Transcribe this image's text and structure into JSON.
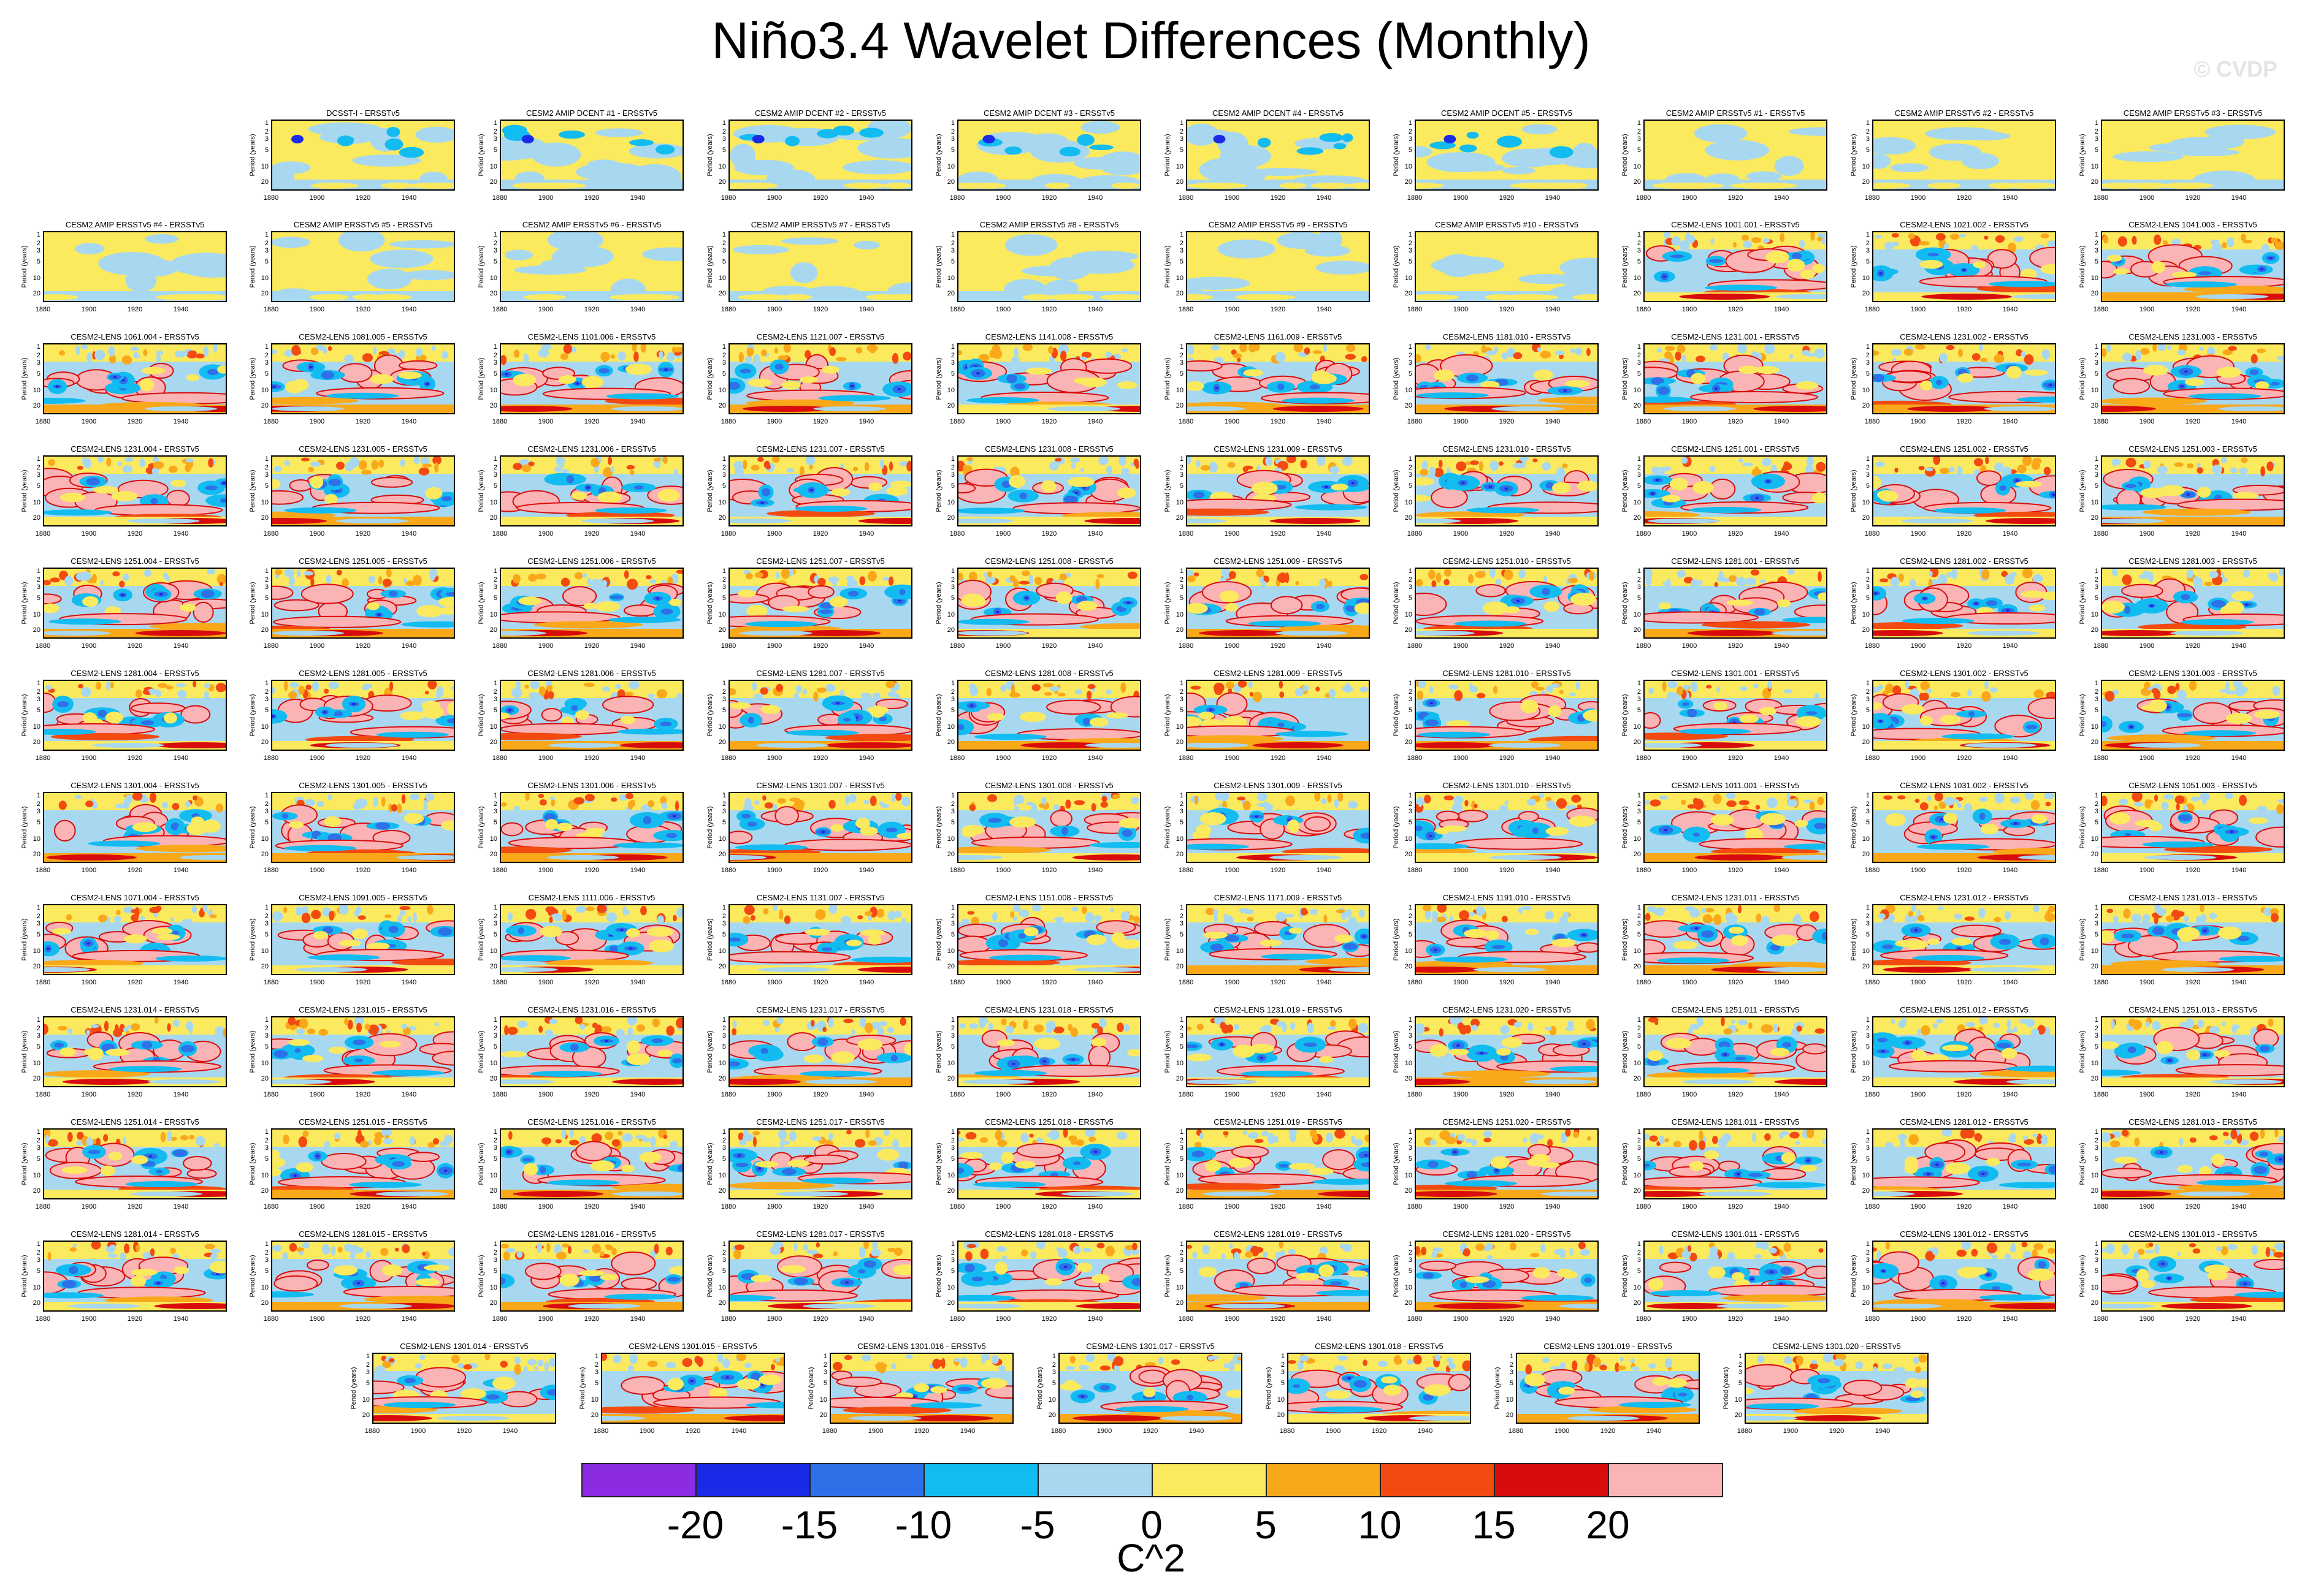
{
  "title": "Niño3.4 Wavelet Differences (Monthly)",
  "watermark": "© CVDP",
  "chart_data": {
    "type": "heatmap",
    "description_units": "C^2",
    "ylabel": "Period (years)",
    "y_ticks": [
      "1",
      "2",
      "3",
      "5",
      "10",
      "20"
    ],
    "x_ticks": [
      "1880",
      "1900",
      "1920",
      "1940"
    ],
    "colorbar": {
      "label": "C^2",
      "levels": [
        -20,
        -15,
        -10,
        -5,
        0,
        5,
        10,
        15,
        20
      ],
      "tick_labels": [
        "-20",
        "-15",
        "-10",
        "-5",
        "0",
        "5",
        "10",
        "15",
        "20"
      ],
      "colors": [
        "#8b2be2",
        "#1a2be8",
        "#2e70e8",
        "#12bcf1",
        "#a8d8f0",
        "#fbe95e",
        "#f9a81a",
        "#f24a10",
        "#d80c0c",
        "#fbb4b6"
      ]
    },
    "panels": [
      "DCSST-I - ERSSTv5",
      "CESM2 AMIP DCENT #1 - ERSSTv5",
      "CESM2 AMIP DCENT #2 - ERSSTv5",
      "CESM2 AMIP DCENT #3 - ERSSTv5",
      "CESM2 AMIP DCENT #4 - ERSSTv5",
      "CESM2 AMIP DCENT #5 - ERSSTv5",
      "CESM2 AMIP ERSSTv5 #1 - ERSSTv5",
      "CESM2 AMIP ERSSTv5 #2 - ERSSTv5",
      "CESM2 AMIP ERSSTv5 #3 - ERSSTv5",
      "CESM2 AMIP ERSSTv5 #4 - ERSSTv5",
      "CESM2 AMIP ERSSTv5 #5 - ERSSTv5",
      "CESM2 AMIP ERSSTv5 #6 - ERSSTv5",
      "CESM2 AMIP ERSSTv5 #7 - ERSSTv5",
      "CESM2 AMIP ERSSTv5 #8 - ERSSTv5",
      "CESM2 AMIP ERSSTv5 #9 - ERSSTv5",
      "CESM2 AMIP ERSSTv5 #10 - ERSSTv5",
      "CESM2-LENS 1001.001 - ERSSTv5",
      "CESM2-LENS 1021.002 - ERSSTv5",
      "CESM2-LENS 1041.003 - ERSSTv5",
      "CESM2-LENS 1061.004 - ERSSTv5",
      "CESM2-LENS 1081.005 - ERSSTv5",
      "CESM2-LENS 1101.006 - ERSSTv5",
      "CESM2-LENS 1121.007 - ERSSTv5",
      "CESM2-LENS 1141.008 - ERSSTv5",
      "CESM2-LENS 1161.009 - ERSSTv5",
      "CESM2-LENS 1181.010 - ERSSTv5",
      "CESM2-LENS 1231.001 - ERSSTv5",
      "CESM2-LENS 1231.002 - ERSSTv5",
      "CESM2-LENS 1231.003 - ERSSTv5",
      "CESM2-LENS 1231.004 - ERSSTv5",
      "CESM2-LENS 1231.005 - ERSSTv5",
      "CESM2-LENS 1231.006 - ERSSTv5",
      "CESM2-LENS 1231.007 - ERSSTv5",
      "CESM2-LENS 1231.008 - ERSSTv5",
      "CESM2-LENS 1231.009 - ERSSTv5",
      "CESM2-LENS 1231.010 - ERSSTv5",
      "CESM2-LENS 1251.001 - ERSSTv5",
      "CESM2-LENS 1251.002 - ERSSTv5",
      "CESM2-LENS 1251.003 - ERSSTv5",
      "CESM2-LENS 1251.004 - ERSSTv5",
      "CESM2-LENS 1251.005 - ERSSTv5",
      "CESM2-LENS 1251.006 - ERSSTv5",
      "CESM2-LENS 1251.007 - ERSSTv5",
      "CESM2-LENS 1251.008 - ERSSTv5",
      "CESM2-LENS 1251.009 - ERSSTv5",
      "CESM2-LENS 1251.010 - ERSSTv5",
      "CESM2-LENS 1281.001 - ERSSTv5",
      "CESM2-LENS 1281.002 - ERSSTv5",
      "CESM2-LENS 1281.003 - ERSSTv5",
      "CESM2-LENS 1281.004 - ERSSTv5",
      "CESM2-LENS 1281.005 - ERSSTv5",
      "CESM2-LENS 1281.006 - ERSSTv5",
      "CESM2-LENS 1281.007 - ERSSTv5",
      "CESM2-LENS 1281.008 - ERSSTv5",
      "CESM2-LENS 1281.009 - ERSSTv5",
      "CESM2-LENS 1281.010 - ERSSTv5",
      "CESM2-LENS 1301.001 - ERSSTv5",
      "CESM2-LENS 1301.002 - ERSSTv5",
      "CESM2-LENS 1301.003 - ERSSTv5",
      "CESM2-LENS 1301.004 - ERSSTv5",
      "CESM2-LENS 1301.005 - ERSSTv5",
      "CESM2-LENS 1301.006 - ERSSTv5",
      "CESM2-LENS 1301.007 - ERSSTv5",
      "CESM2-LENS 1301.008 - ERSSTv5",
      "CESM2-LENS 1301.009 - ERSSTv5",
      "CESM2-LENS 1301.010 - ERSSTv5",
      "CESM2-LENS 1011.001 - ERSSTv5",
      "CESM2-LENS 1031.002 - ERSSTv5",
      "CESM2-LENS 1051.003 - ERSSTv5",
      "CESM2-LENS 1071.004 - ERSSTv5",
      "CESM2-LENS 1091.005 - ERSSTv5",
      "CESM2-LENS 1111.006 - ERSSTv5",
      "CESM2-LENS 1131.007 - ERSSTv5",
      "CESM2-LENS 1151.008 - ERSSTv5",
      "CESM2-LENS 1171.009 - ERSSTv5",
      "CESM2-LENS 1191.010 - ERSSTv5",
      "CESM2-LENS 1231.011 - ERSSTv5",
      "CESM2-LENS 1231.012 - ERSSTv5",
      "CESM2-LENS 1231.013 - ERSSTv5",
      "CESM2-LENS 1231.014 - ERSSTv5",
      "CESM2-LENS 1231.015 - ERSSTv5",
      "CESM2-LENS 1231.016 - ERSSTv5",
      "CESM2-LENS 1231.017 - ERSSTv5",
      "CESM2-LENS 1231.018 - ERSSTv5",
      "CESM2-LENS 1231.019 - ERSSTv5",
      "CESM2-LENS 1231.020 - ERSSTv5",
      "CESM2-LENS 1251.011 - ERSSTv5",
      "CESM2-LENS 1251.012 - ERSSTv5",
      "CESM2-LENS 1251.013 - ERSSTv5",
      "CESM2-LENS 1251.014 - ERSSTv5",
      "CESM2-LENS 1251.015 - ERSSTv5",
      "CESM2-LENS 1251.016 - ERSSTv5",
      "CESM2-LENS 1251.017 - ERSSTv5",
      "CESM2-LENS 1251.018 - ERSSTv5",
      "CESM2-LENS 1251.019 - ERSSTv5",
      "CESM2-LENS 1251.020 - ERSSTv5",
      "CESM2-LENS 1281.011 - ERSSTv5",
      "CESM2-LENS 1281.012 - ERSSTv5",
      "CESM2-LENS 1281.013 - ERSSTv5",
      "CESM2-LENS 1281.014 - ERSSTv5",
      "CESM2-LENS 1281.015 - ERSSTv5",
      "CESM2-LENS 1281.016 - ERSSTv5",
      "CESM2-LENS 1281.017 - ERSSTv5",
      "CESM2-LENS 1281.018 - ERSSTv5",
      "CESM2-LENS 1281.019 - ERSSTv5",
      "CESM2-LENS 1281.020 - ERSSTv5",
      "CESM2-LENS 1301.011 - ERSSTv5",
      "CESM2-LENS 1301.012 - ERSSTv5",
      "CESM2-LENS 1301.013 - ERSSTv5",
      "CESM2-LENS 1301.014 - ERSSTv5",
      "CESM2-LENS 1301.015 - ERSSTv5",
      "CESM2-LENS 1301.016 - ERSSTv5",
      "CESM2-LENS 1301.017 - ERSSTv5",
      "CESM2-LENS 1301.018 - ERSSTv5",
      "CESM2-LENS 1301.019 - ERSSTv5",
      "CESM2-LENS 1301.020 - ERSSTv5"
    ]
  }
}
